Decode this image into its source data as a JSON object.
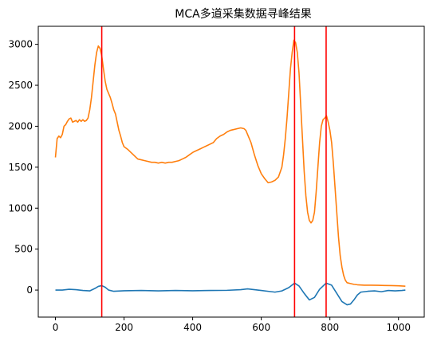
{
  "chart_data": {
    "type": "line",
    "title": "MCA多道采集数据寻峰结果",
    "xlabel": "",
    "ylabel": "",
    "xlim": [
      -50,
      1075
    ],
    "ylim": [
      -330,
      3220
    ],
    "grid": false,
    "legend": "none",
    "xticks": [
      0,
      200,
      400,
      600,
      800,
      1000
    ],
    "yticks": [
      0,
      500,
      1000,
      1500,
      2000,
      2500,
      3000
    ],
    "peak_lines": [
      135,
      697,
      789
    ],
    "peak_line_color": "#ff0000",
    "series": [
      {
        "color": "#ff7f0e",
        "x": [
          0,
          5,
          10,
          15,
          20,
          25,
          30,
          35,
          40,
          45,
          50,
          55,
          60,
          65,
          70,
          75,
          80,
          85,
          90,
          95,
          100,
          105,
          110,
          115,
          120,
          125,
          130,
          135,
          140,
          145,
          150,
          155,
          160,
          165,
          170,
          175,
          180,
          185,
          190,
          195,
          200,
          210,
          220,
          230,
          240,
          250,
          260,
          270,
          280,
          290,
          300,
          310,
          320,
          330,
          340,
          350,
          360,
          370,
          380,
          390,
          400,
          410,
          420,
          430,
          440,
          450,
          460,
          470,
          480,
          490,
          500,
          510,
          520,
          530,
          540,
          550,
          555,
          560,
          570,
          580,
          590,
          600,
          610,
          620,
          630,
          640,
          650,
          660,
          665,
          670,
          675,
          680,
          685,
          690,
          695,
          700,
          705,
          710,
          715,
          720,
          725,
          730,
          735,
          740,
          745,
          750,
          755,
          760,
          765,
          770,
          775,
          780,
          785,
          790,
          795,
          800,
          805,
          810,
          815,
          820,
          825,
          830,
          835,
          840,
          845,
          850,
          860,
          870,
          880,
          900,
          920,
          940,
          960,
          980,
          1000,
          1010,
          1020
        ],
        "y": [
          1620,
          1850,
          1880,
          1860,
          1900,
          2000,
          2020,
          2060,
          2090,
          2100,
          2050,
          2060,
          2070,
          2050,
          2080,
          2060,
          2080,
          2060,
          2070,
          2100,
          2200,
          2350,
          2550,
          2750,
          2900,
          2980,
          2950,
          2860,
          2700,
          2550,
          2450,
          2400,
          2350,
          2280,
          2200,
          2150,
          2050,
          1950,
          1880,
          1800,
          1750,
          1720,
          1680,
          1640,
          1600,
          1590,
          1580,
          1570,
          1560,
          1560,
          1550,
          1560,
          1550,
          1560,
          1560,
          1570,
          1580,
          1600,
          1620,
          1650,
          1680,
          1700,
          1720,
          1740,
          1760,
          1780,
          1800,
          1850,
          1880,
          1900,
          1930,
          1950,
          1960,
          1970,
          1980,
          1970,
          1950,
          1900,
          1800,
          1650,
          1520,
          1420,
          1360,
          1310,
          1320,
          1340,
          1380,
          1500,
          1650,
          1850,
          2100,
          2400,
          2700,
          2900,
          3050,
          3020,
          2900,
          2650,
          2250,
          1850,
          1450,
          1150,
          950,
          850,
          820,
          850,
          950,
          1200,
          1500,
          1800,
          2000,
          2080,
          2100,
          2130,
          2050,
          1950,
          1800,
          1550,
          1250,
          950,
          650,
          420,
          280,
          180,
          120,
          90,
          80,
          70,
          65,
          60,
          60,
          58,
          56,
          55,
          52,
          50,
          48
        ]
      },
      {
        "color": "#1f77b4",
        "x": [
          0,
          20,
          40,
          60,
          80,
          100,
          115,
          125,
          135,
          145,
          155,
          170,
          200,
          250,
          300,
          350,
          400,
          450,
          500,
          540,
          560,
          580,
          600,
          620,
          640,
          660,
          680,
          697,
          710,
          725,
          740,
          755,
          770,
          789,
          805,
          820,
          835,
          850,
          860,
          870,
          880,
          890,
          910,
          930,
          950,
          970,
          990,
          1010,
          1020
        ],
        "y": [
          0,
          0,
          10,
          5,
          -5,
          -10,
          20,
          45,
          55,
          35,
          0,
          -15,
          -8,
          -5,
          -10,
          -5,
          -8,
          -5,
          -3,
          5,
          15,
          5,
          -5,
          -15,
          -25,
          -10,
          30,
          85,
          50,
          -40,
          -120,
          -90,
          10,
          85,
          60,
          -40,
          -140,
          -180,
          -170,
          -120,
          -60,
          -25,
          -15,
          -10,
          -20,
          -5,
          -10,
          -5,
          0
        ]
      }
    ]
  }
}
